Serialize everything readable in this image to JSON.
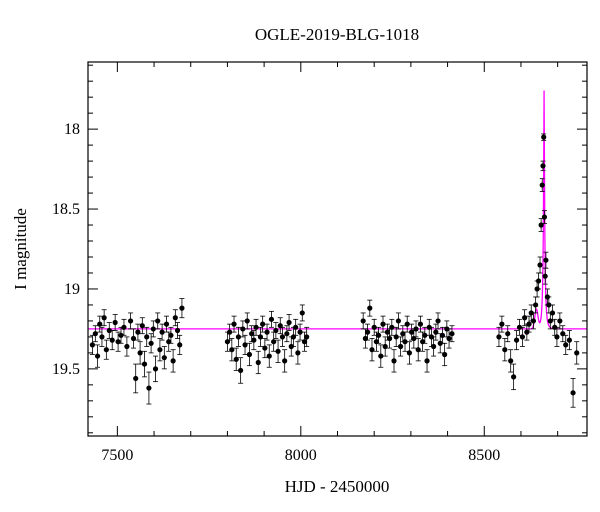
{
  "chart_data": {
    "type": "scatter",
    "title": "OGLE-2019-BLG-1018",
    "xlabel": "HJD - 2450000",
    "ylabel": "I magnitude",
    "xlim": [
      7420,
      8780
    ],
    "ylim": [
      19.92,
      17.58
    ],
    "y_inverted": true,
    "xticks": [
      7500,
      8000,
      8500
    ],
    "xtick_labels": [
      "7500",
      "8000",
      "8500"
    ],
    "yticks": [
      18,
      18.5,
      19,
      19.5
    ],
    "ytick_labels": [
      "18",
      "18.5",
      "19",
      "19.5"
    ],
    "grid": false,
    "colors": {
      "points": "#000000",
      "model": "#ff00ff",
      "axes": "#000000"
    },
    "series": [
      {
        "kind": "points-with-errorbars",
        "x": [
          7432,
          7440,
          7446,
          7452,
          7458,
          7464,
          7470,
          7478,
          7486,
          7494,
          7502,
          7510,
          7518,
          7526,
          7536,
          7544,
          7550,
          7556,
          7562,
          7568,
          7574,
          7580,
          7586,
          7592,
          7598,
          7604,
          7610,
          7616,
          7622,
          7628,
          7634,
          7640,
          7646,
          7652,
          7658,
          7664,
          7670,
          7676,
          7800,
          7806,
          7812,
          7818,
          7824,
          7830,
          7836,
          7842,
          7848,
          7854,
          7860,
          7866,
          7872,
          7878,
          7884,
          7890,
          7896,
          7902,
          7908,
          7914,
          7920,
          7926,
          7932,
          7938,
          7944,
          7950,
          7956,
          7962,
          7968,
          7974,
          7980,
          7986,
          7992,
          7998,
          8004,
          8010,
          8016,
          8170,
          8176,
          8182,
          8188,
          8194,
          8200,
          8206,
          8212,
          8218,
          8224,
          8230,
          8236,
          8242,
          8248,
          8254,
          8260,
          8266,
          8272,
          8278,
          8284,
          8290,
          8296,
          8302,
          8308,
          8314,
          8320,
          8326,
          8332,
          8338,
          8344,
          8350,
          8356,
          8362,
          8368,
          8374,
          8380,
          8386,
          8392,
          8398,
          8404,
          8412,
          8540,
          8548,
          8556,
          8564,
          8572,
          8580,
          8588,
          8596,
          8604,
          8610,
          8616,
          8622,
          8628,
          8634,
          8640,
          8644,
          8648,
          8652,
          8655,
          8658,
          8660,
          8662,
          8664,
          8666,
          8668,
          8672,
          8676,
          8680,
          8686,
          8692,
          8698,
          8706,
          8714,
          8722,
          8732,
          8742,
          8752
        ],
        "y": [
          19.35,
          19.28,
          19.42,
          19.22,
          19.3,
          19.18,
          19.38,
          19.26,
          19.32,
          19.21,
          19.33,
          19.29,
          19.24,
          19.36,
          19.2,
          19.31,
          19.56,
          19.27,
          19.4,
          19.23,
          19.47,
          19.3,
          19.62,
          19.34,
          19.25,
          19.5,
          19.2,
          19.38,
          19.27,
          19.43,
          19.22,
          19.33,
          19.29,
          19.45,
          19.18,
          19.26,
          19.35,
          19.12,
          19.33,
          19.27,
          19.38,
          19.22,
          19.44,
          19.3,
          19.51,
          19.25,
          19.35,
          19.2,
          19.41,
          19.28,
          19.32,
          19.24,
          19.46,
          19.3,
          19.22,
          19.37,
          19.27,
          19.42,
          19.19,
          19.33,
          19.26,
          19.39,
          19.23,
          19.3,
          19.45,
          19.28,
          19.21,
          19.36,
          19.3,
          19.24,
          19.4,
          19.27,
          19.15,
          19.33,
          19.3,
          19.2,
          19.31,
          19.27,
          19.12,
          19.38,
          19.24,
          19.33,
          19.29,
          19.42,
          19.22,
          19.36,
          19.27,
          19.31,
          19.24,
          19.45,
          19.3,
          19.2,
          19.36,
          19.28,
          19.33,
          19.22,
          19.4,
          19.27,
          19.31,
          19.25,
          19.38,
          19.22,
          19.33,
          19.29,
          19.45,
          19.24,
          19.3,
          19.36,
          19.27,
          19.2,
          19.34,
          19.29,
          19.41,
          19.25,
          19.31,
          19.28,
          19.3,
          19.22,
          19.38,
          19.28,
          19.45,
          19.55,
          19.32,
          19.24,
          19.3,
          19.18,
          19.27,
          19.22,
          19.15,
          19.2,
          19.1,
          19.0,
          18.95,
          18.85,
          18.6,
          18.35,
          18.23,
          18.05,
          18.55,
          18.92,
          18.82,
          19.05,
          19.1,
          19.2,
          19.15,
          19.24,
          19.3,
          19.2,
          19.28,
          19.35,
          19.32,
          19.65,
          19.4
        ],
        "err": [
          0.06,
          0.05,
          0.07,
          0.05,
          0.06,
          0.05,
          0.06,
          0.05,
          0.06,
          0.05,
          0.06,
          0.05,
          0.05,
          0.06,
          0.05,
          0.06,
          0.09,
          0.05,
          0.07,
          0.05,
          0.08,
          0.06,
          0.1,
          0.06,
          0.05,
          0.08,
          0.05,
          0.07,
          0.05,
          0.07,
          0.05,
          0.06,
          0.05,
          0.07,
          0.05,
          0.05,
          0.06,
          0.06,
          0.06,
          0.05,
          0.07,
          0.05,
          0.07,
          0.06,
          0.08,
          0.05,
          0.06,
          0.05,
          0.07,
          0.05,
          0.06,
          0.05,
          0.07,
          0.06,
          0.05,
          0.06,
          0.05,
          0.07,
          0.05,
          0.06,
          0.05,
          0.07,
          0.05,
          0.06,
          0.07,
          0.05,
          0.05,
          0.06,
          0.06,
          0.05,
          0.07,
          0.05,
          0.05,
          0.06,
          0.06,
          0.05,
          0.06,
          0.05,
          0.05,
          0.07,
          0.05,
          0.06,
          0.05,
          0.07,
          0.05,
          0.06,
          0.05,
          0.06,
          0.05,
          0.07,
          0.06,
          0.05,
          0.06,
          0.05,
          0.06,
          0.05,
          0.07,
          0.05,
          0.06,
          0.05,
          0.07,
          0.05,
          0.06,
          0.05,
          0.07,
          0.05,
          0.06,
          0.06,
          0.05,
          0.05,
          0.06,
          0.05,
          0.07,
          0.05,
          0.06,
          0.05,
          0.06,
          0.05,
          0.07,
          0.05,
          0.07,
          0.08,
          0.06,
          0.05,
          0.06,
          0.05,
          0.05,
          0.05,
          0.05,
          0.05,
          0.05,
          0.05,
          0.05,
          0.05,
          0.04,
          0.04,
          0.03,
          0.02,
          0.04,
          0.05,
          0.05,
          0.05,
          0.05,
          0.05,
          0.05,
          0.05,
          0.06,
          0.05,
          0.05,
          0.06,
          0.06,
          0.09,
          0.07
        ]
      },
      {
        "kind": "model-curve",
        "baseline": 19.25,
        "t0": 8663,
        "tE": 6,
        "u0": 0.12,
        "fs": 0.4,
        "planet_t": 8642,
        "planet_amp": 0.12,
        "planet_w": 6
      }
    ]
  }
}
